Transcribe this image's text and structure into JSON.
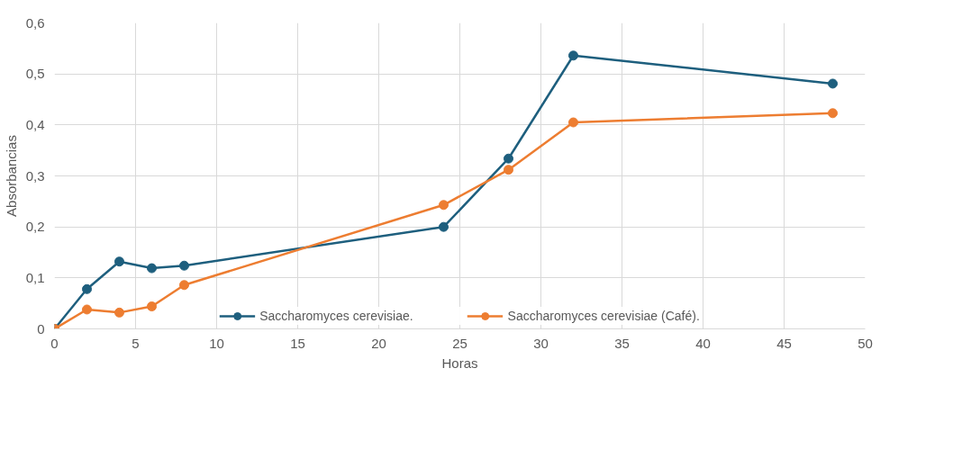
{
  "chart_data": {
    "type": "line",
    "xlabel": "Horas",
    "ylabel": "Absorbancias",
    "x": [
      0,
      2,
      4,
      6,
      8,
      24,
      28,
      32,
      48
    ],
    "series": [
      {
        "name": "Saccharomyces cerevisiae.",
        "color": "#1e5f7e",
        "values": [
          0,
          0.078,
          0.132,
          0.119,
          0.124,
          0.2,
          0.334,
          0.536,
          0.481
        ]
      },
      {
        "name": "Saccharomyces cerevisiae (Café).",
        "color": "#ed7d31",
        "values": [
          0,
          0.038,
          0.032,
          0.044,
          0.086,
          0.243,
          0.312,
          0.405,
          0.423
        ]
      }
    ],
    "xlim": [
      0,
      50
    ],
    "xticks": [
      0,
      5,
      10,
      15,
      20,
      25,
      30,
      35,
      40,
      45,
      50
    ],
    "ylim": [
      0,
      0.6
    ],
    "yticks": [
      {
        "value": 0,
        "label": "0"
      },
      {
        "value": 0.1,
        "label": "0,1"
      },
      {
        "value": 0.2,
        "label": "0,2"
      },
      {
        "value": 0.3,
        "label": "0,3"
      },
      {
        "value": 0.4,
        "label": "0,4"
      },
      {
        "value": 0.5,
        "label": "0,5"
      },
      {
        "value": 0.6,
        "label": "0,6"
      }
    ],
    "grid": true,
    "legend": "bottom",
    "marker": "circle",
    "line_style": "solid"
  }
}
